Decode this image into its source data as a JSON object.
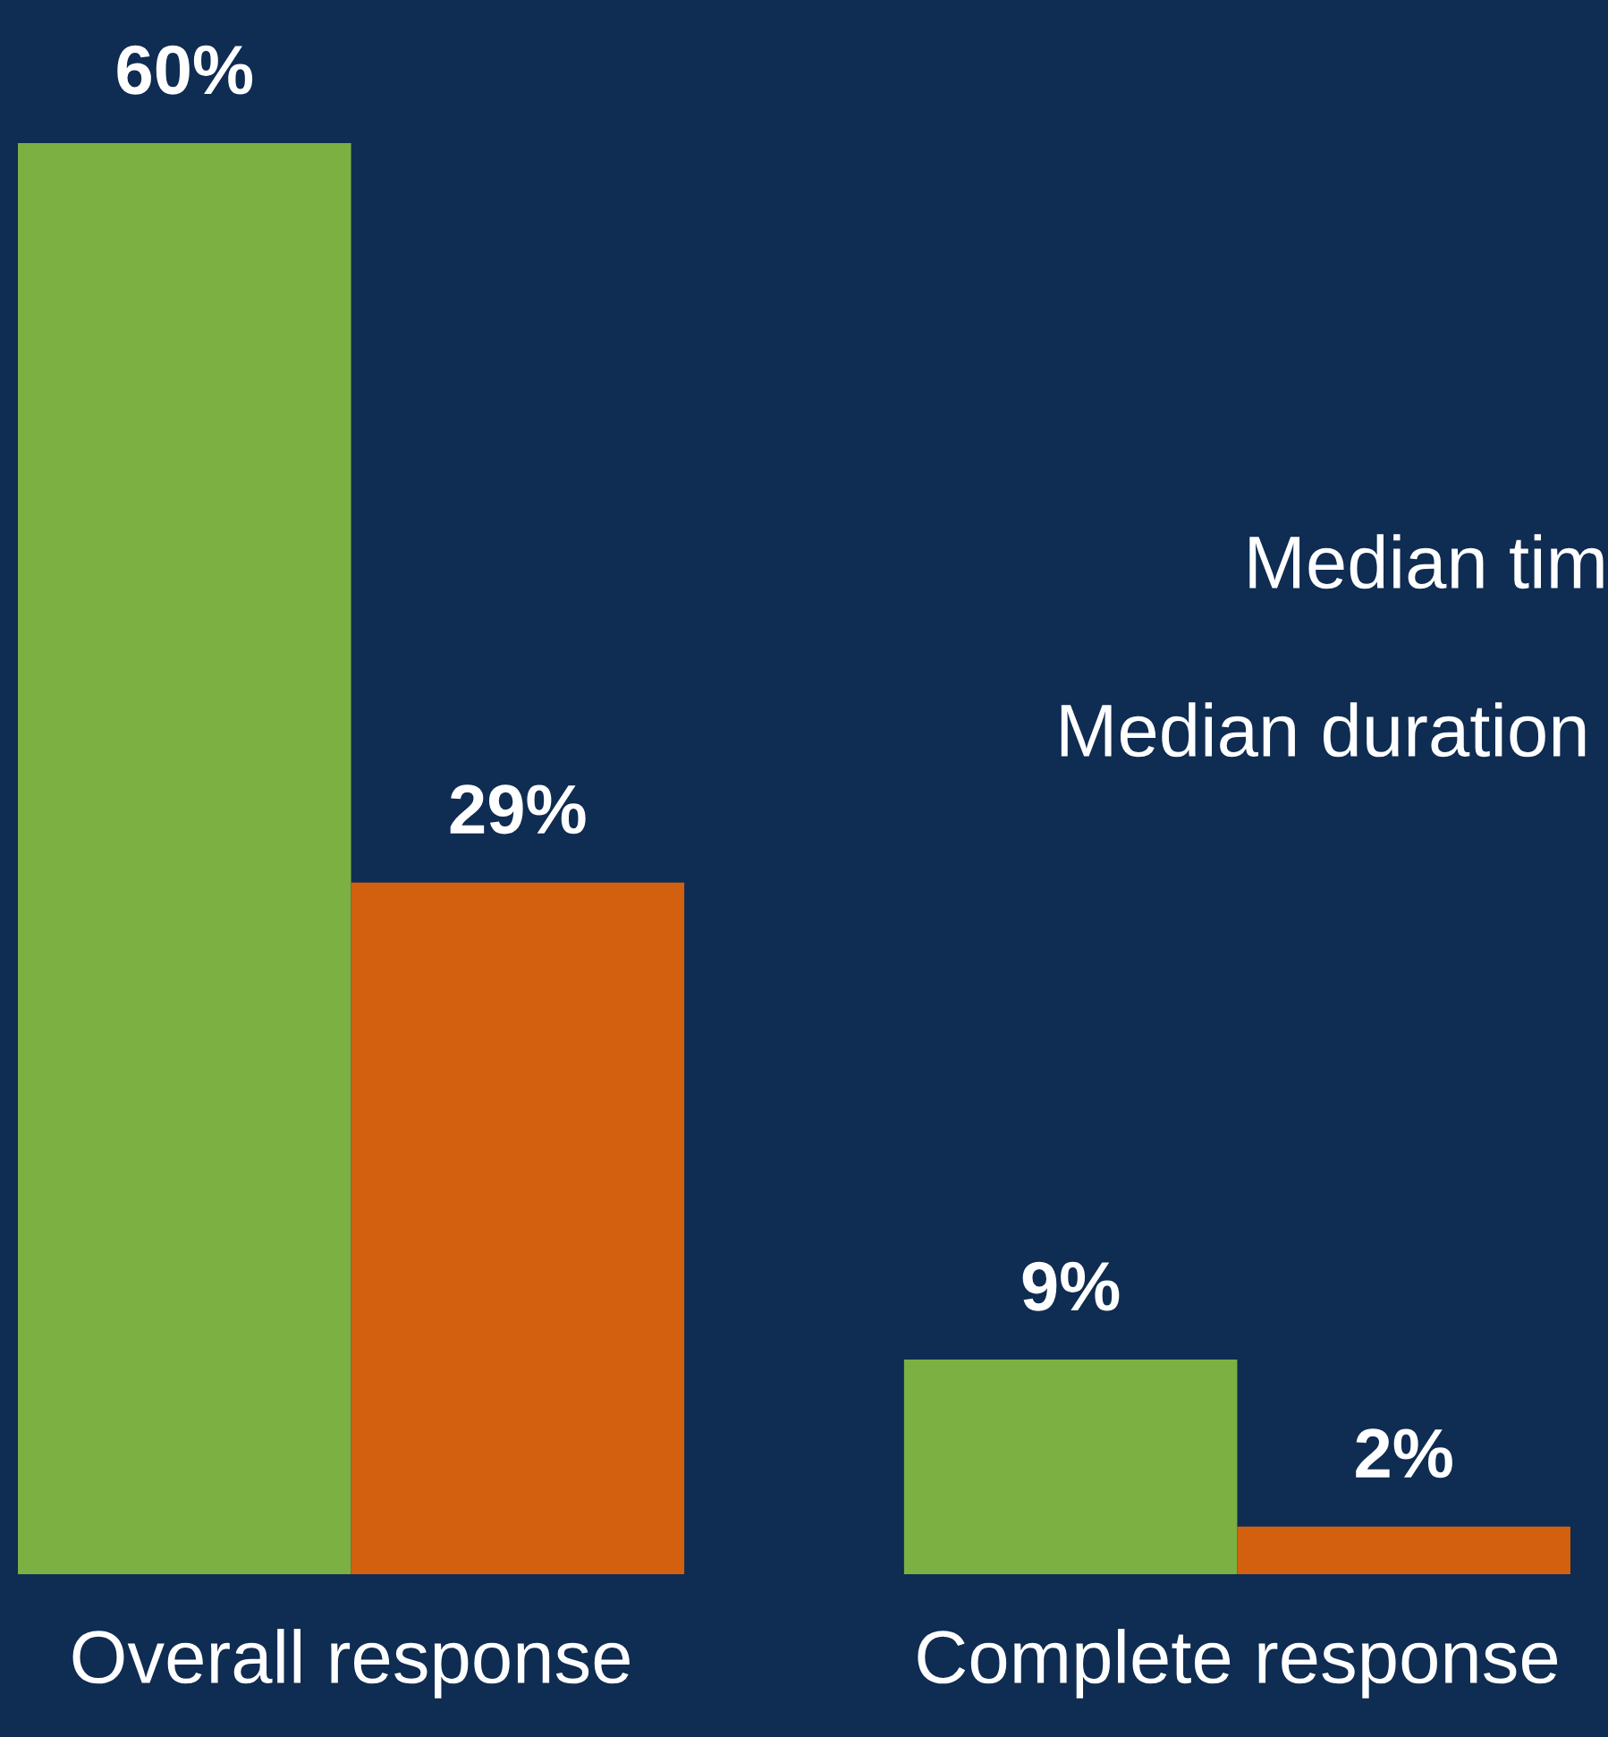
{
  "chart_data": {
    "type": "bar",
    "categories": [
      "Overall response",
      "Complete response"
    ],
    "series": [
      {
        "color": "#7cb042",
        "values": [
          60,
          9
        ],
        "value_labels": [
          "60%",
          "9%"
        ]
      },
      {
        "color": "#d2600e",
        "values": [
          29,
          2
        ],
        "value_labels": [
          "29%",
          "2%"
        ]
      }
    ],
    "annotations": [
      "Median tim",
      "Median duration"
    ],
    "grid": false,
    "legend": false
  }
}
